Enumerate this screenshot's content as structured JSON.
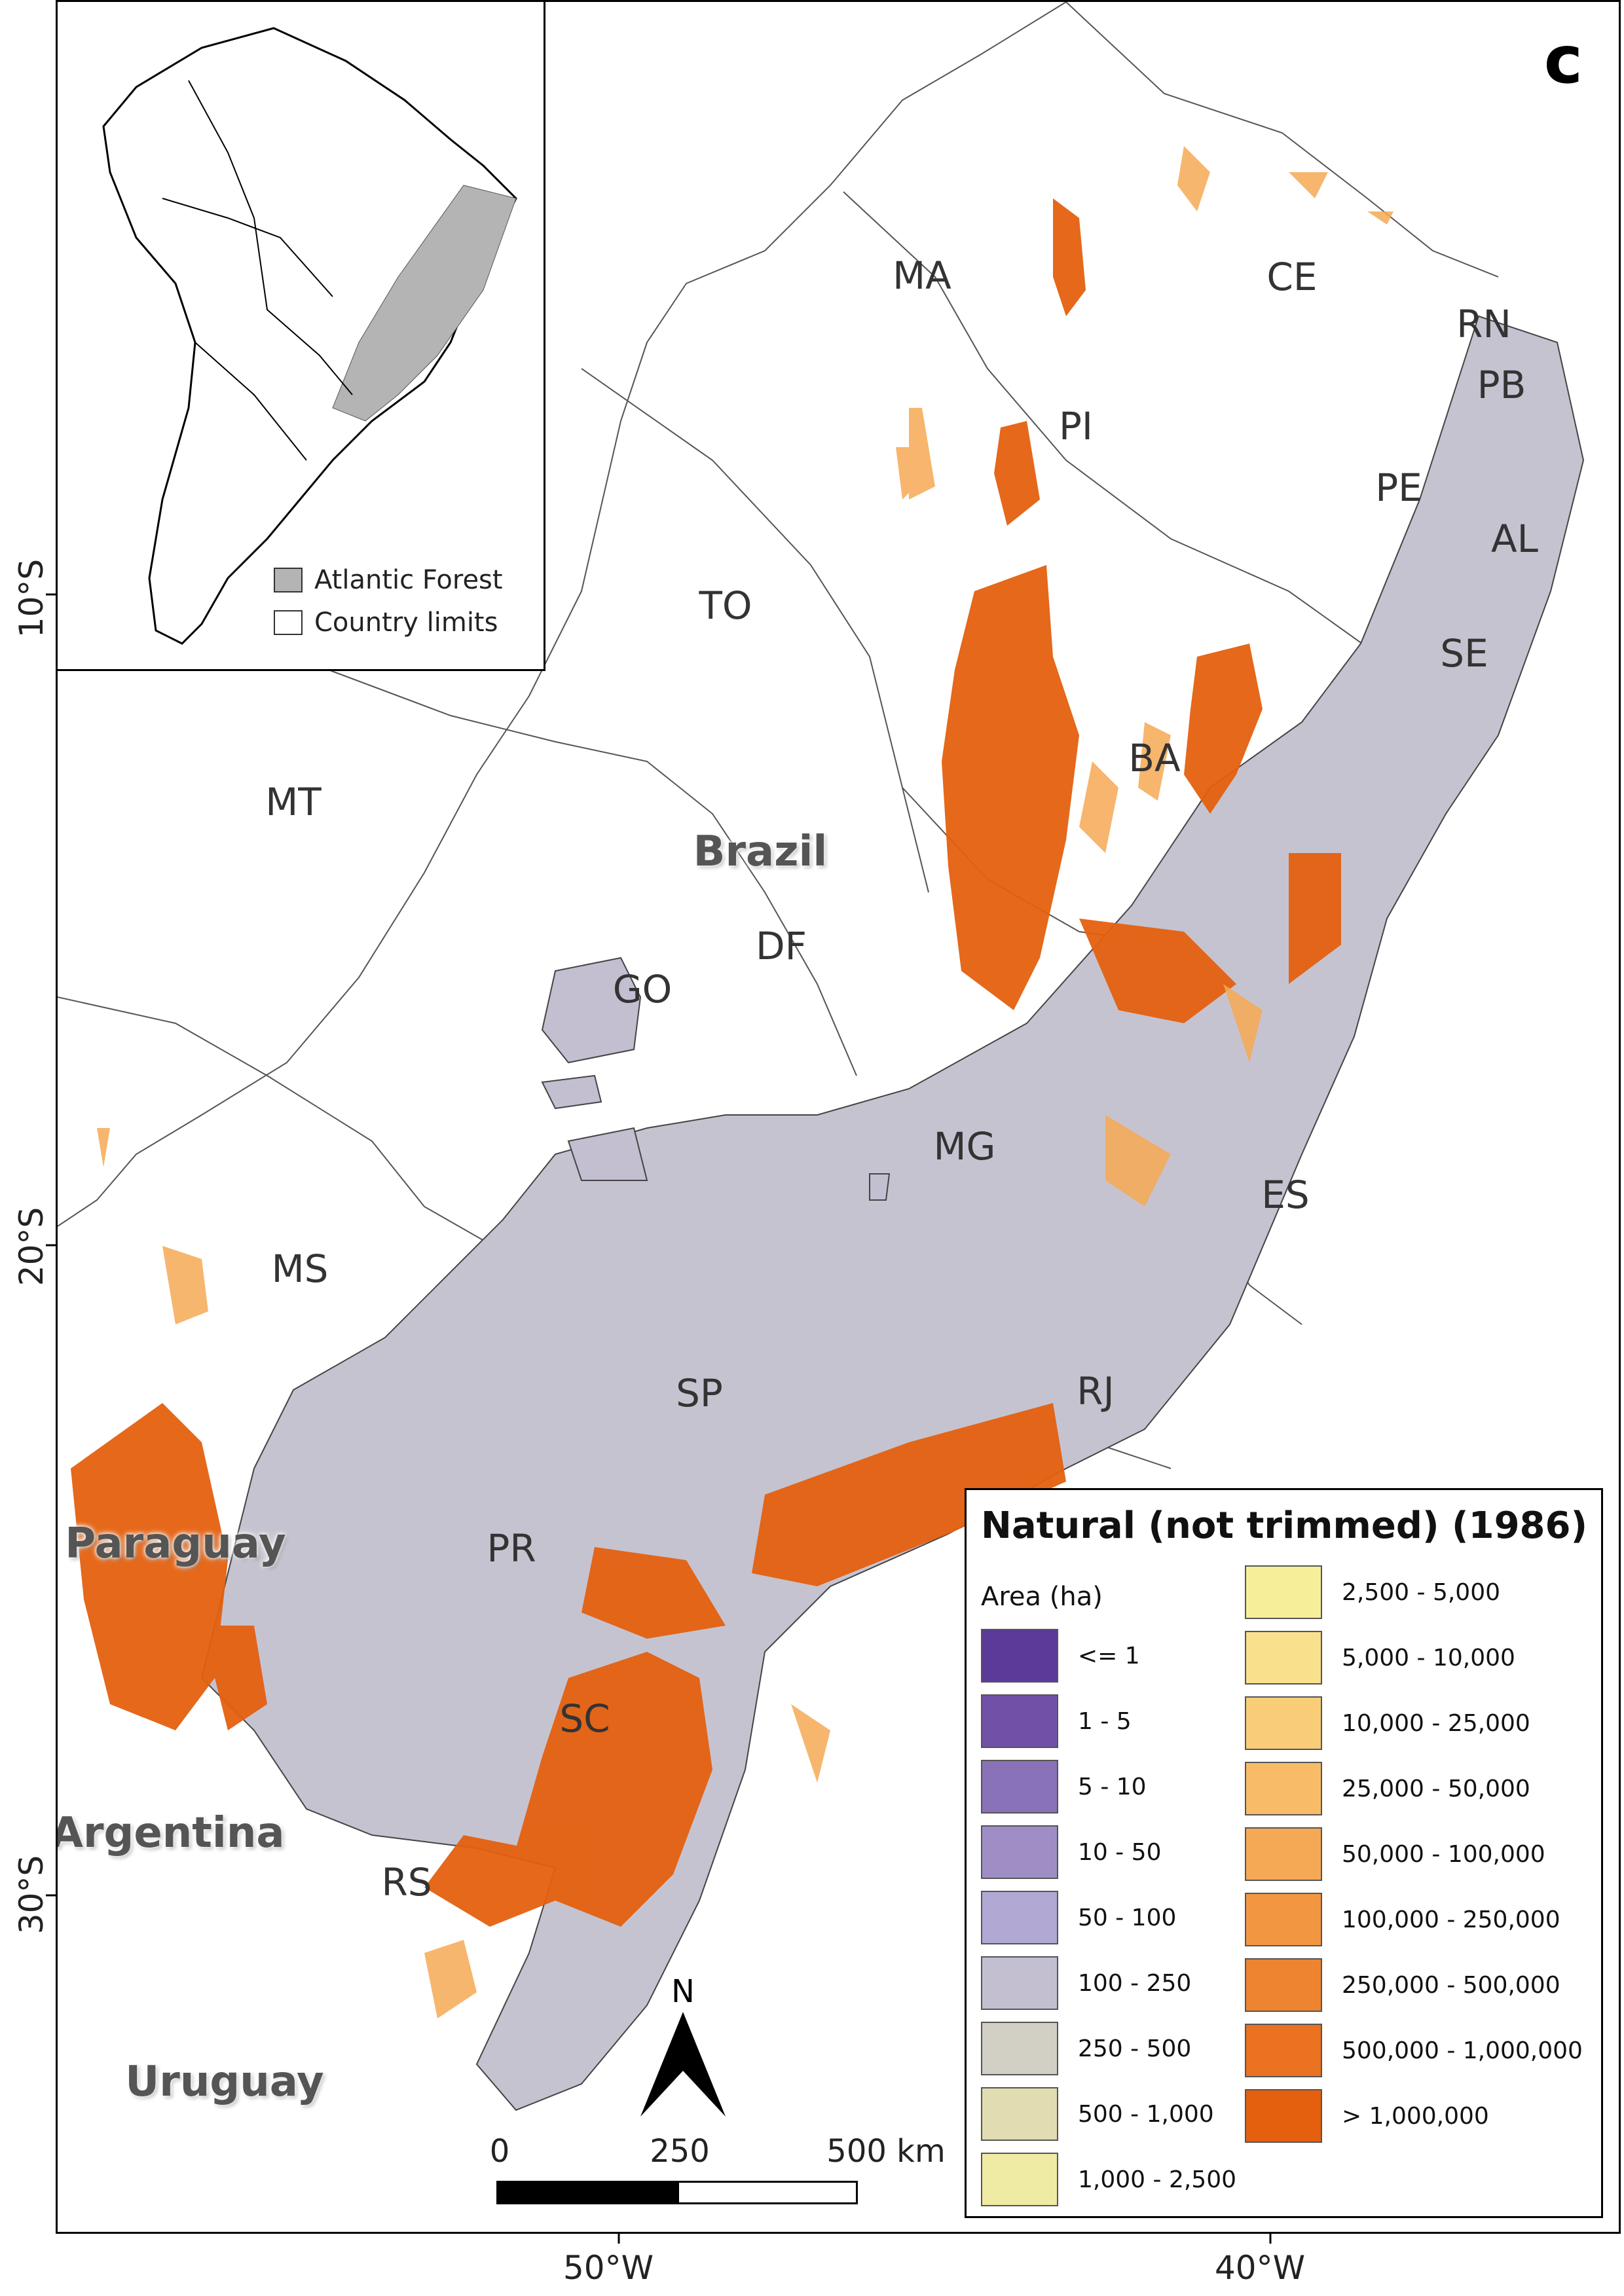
{
  "panel_label": "c",
  "inset": {
    "legend": [
      {
        "label": "Atlantic Forest",
        "color": "#b4b4b4"
      },
      {
        "label": "Country limits",
        "color": "#ffffff"
      }
    ]
  },
  "states": [
    "MA",
    "CE",
    "RN",
    "PB",
    "PI",
    "PE",
    "AL",
    "TO",
    "SE",
    "BA",
    "MT",
    "DF",
    "GO",
    "MG",
    "ES",
    "MS",
    "SP",
    "RJ",
    "PR",
    "SC",
    "RS"
  ],
  "countries": [
    "Brazil",
    "Paraguay",
    "Argentina",
    "Uruguay"
  ],
  "legend": {
    "title": "Natural (not trimmed) (1986)",
    "subtitle": "Area (ha)",
    "classes": [
      {
        "label": "<= 1",
        "color": "#5b3a9a"
      },
      {
        "label": "1 - 5",
        "color": "#7151a8"
      },
      {
        "label": "5 - 10",
        "color": "#8a72b8"
      },
      {
        "label": "10 - 50",
        "color": "#9f8ec6"
      },
      {
        "label": "50 - 100",
        "color": "#b2a8d4"
      },
      {
        "label": "100 - 250",
        "color": "#c3bfd1"
      },
      {
        "label": "250 - 500",
        "color": "#d2cfc4"
      },
      {
        "label": "500 - 1,000",
        "color": "#e2dcb2"
      },
      {
        "label": "1,000 - 2,500",
        "color": "#f0eba4"
      },
      {
        "label": "2,500 - 5,000",
        "color": "#f7ee9a"
      },
      {
        "label": "5,000 - 10,000",
        "color": "#f9e08c"
      },
      {
        "label": "10,000 - 25,000",
        "color": "#f9cd78"
      },
      {
        "label": "25,000 - 50,000",
        "color": "#f8bc68"
      },
      {
        "label": "50,000 - 100,000",
        "color": "#f6a954"
      },
      {
        "label": "100,000 - 250,000",
        "color": "#f39642"
      },
      {
        "label": "250,000 - 500,000",
        "color": "#ef8430"
      },
      {
        "label": "500,000 - 1,000,000",
        "color": "#ea7220"
      },
      {
        "label": "> 1,000,000",
        "color": "#e4600f"
      }
    ]
  },
  "scale_bar": {
    "labels": [
      "0",
      "250",
      "500 km"
    ]
  },
  "north_label": "N",
  "axes": {
    "latitude": [
      "10°S",
      "20°S",
      "30°S"
    ],
    "longitude": [
      "50°W",
      "40°W"
    ]
  }
}
